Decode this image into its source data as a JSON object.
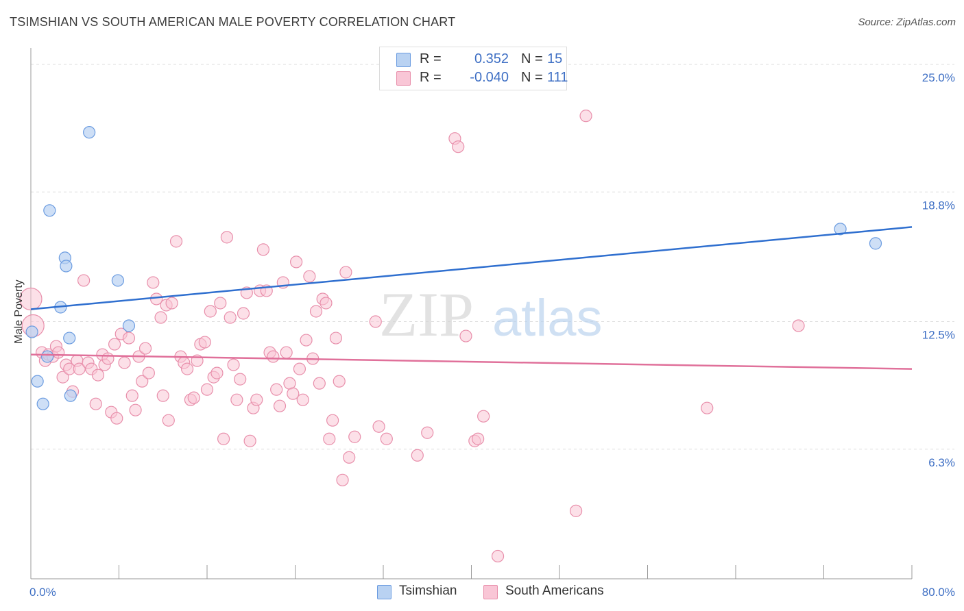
{
  "title": "TSIMSHIAN VS SOUTH AMERICAN MALE POVERTY CORRELATION CHART",
  "source": "Source: ZipAtlas.com",
  "watermark": {
    "part1": "ZIP",
    "part2": "atlas"
  },
  "colors": {
    "tsimshian_fill": "#b9d2f2",
    "tsimshian_stroke": "#6a9be0",
    "tsimshian_line": "#2f6fcf",
    "south_fill": "#f9c6d6",
    "south_stroke": "#e88fab",
    "south_line": "#e0709a",
    "tick_label": "#3e6fc4",
    "grid": "#dddddd"
  },
  "legend": {
    "rows": [
      {
        "r_label": "R =",
        "r_value": "0.352",
        "n_label": "N =",
        "n_value": "15"
      },
      {
        "r_label": "R =",
        "r_value": "-0.040",
        "n_label": "N =",
        "n_value": "111"
      }
    ]
  },
  "bottom_legend": {
    "tsimshian": "Tsimshian",
    "south": "South Americans"
  },
  "chart_data": {
    "type": "scatter",
    "title": "TSIMSHIAN VS SOUTH AMERICAN MALE POVERTY CORRELATION CHART",
    "ylabel": "Male Poverty",
    "xlabel": "",
    "xlim": [
      0,
      80
    ],
    "ylim": [
      0,
      25.8
    ],
    "x_tick_labels": [
      "0.0%",
      "80.0%"
    ],
    "y_ticks": [
      {
        "value": 6.3,
        "label": "6.3%"
      },
      {
        "value": 12.5,
        "label": "12.5%"
      },
      {
        "value": 18.8,
        "label": "18.8%"
      },
      {
        "value": 25.0,
        "label": "25.0%"
      }
    ],
    "grid": true,
    "legend_position": "top-center",
    "series": [
      {
        "name": "Tsimshian",
        "r": 0.352,
        "n": 15,
        "trend": {
          "x": [
            0,
            80
          ],
          "y": [
            13.1,
            17.1
          ]
        },
        "points": [
          [
            0.1,
            12.0
          ],
          [
            0.6,
            9.6
          ],
          [
            1.1,
            8.5
          ],
          [
            1.5,
            10.8
          ],
          [
            1.7,
            17.9
          ],
          [
            2.7,
            13.2
          ],
          [
            3.1,
            15.6
          ],
          [
            3.2,
            15.2
          ],
          [
            3.5,
            11.7
          ],
          [
            3.6,
            8.9
          ],
          [
            5.3,
            21.7
          ],
          [
            7.9,
            14.5
          ],
          [
            8.9,
            12.3
          ],
          [
            73.5,
            17.0
          ],
          [
            76.7,
            16.3
          ]
        ]
      },
      {
        "name": "South Americans",
        "r": -0.04,
        "n": 111,
        "trend": {
          "x": [
            0,
            80
          ],
          "y": [
            10.9,
            10.2
          ]
        },
        "points": [
          [
            0.2,
            12.3
          ],
          [
            0.0,
            13.6
          ],
          [
            1.0,
            11.0
          ],
          [
            1.3,
            10.6
          ],
          [
            1.6,
            10.9
          ],
          [
            2.0,
            10.8
          ],
          [
            2.3,
            11.3
          ],
          [
            2.5,
            11.0
          ],
          [
            2.9,
            9.8
          ],
          [
            3.2,
            10.4
          ],
          [
            3.5,
            10.2
          ],
          [
            3.8,
            9.1
          ],
          [
            4.2,
            10.6
          ],
          [
            4.4,
            10.2
          ],
          [
            4.8,
            14.5
          ],
          [
            5.2,
            10.5
          ],
          [
            5.5,
            10.2
          ],
          [
            5.9,
            8.5
          ],
          [
            6.1,
            9.9
          ],
          [
            6.5,
            10.9
          ],
          [
            6.7,
            10.4
          ],
          [
            7.0,
            10.7
          ],
          [
            7.3,
            8.1
          ],
          [
            7.6,
            11.4
          ],
          [
            7.8,
            7.8
          ],
          [
            8.2,
            11.9
          ],
          [
            8.5,
            10.5
          ],
          [
            8.9,
            11.7
          ],
          [
            9.2,
            8.9
          ],
          [
            9.5,
            8.2
          ],
          [
            9.8,
            10.8
          ],
          [
            10.1,
            9.6
          ],
          [
            10.4,
            11.2
          ],
          [
            10.7,
            10.0
          ],
          [
            11.1,
            14.4
          ],
          [
            11.4,
            13.6
          ],
          [
            11.8,
            12.7
          ],
          [
            12.0,
            8.9
          ],
          [
            12.3,
            13.3
          ],
          [
            12.5,
            7.7
          ],
          [
            12.8,
            13.4
          ],
          [
            13.2,
            16.4
          ],
          [
            13.6,
            10.8
          ],
          [
            13.9,
            10.5
          ],
          [
            14.2,
            10.2
          ],
          [
            14.5,
            8.7
          ],
          [
            14.8,
            8.8
          ],
          [
            15.1,
            10.6
          ],
          [
            15.4,
            11.4
          ],
          [
            15.8,
            11.5
          ],
          [
            16.0,
            9.2
          ],
          [
            16.3,
            13.0
          ],
          [
            16.6,
            9.8
          ],
          [
            16.9,
            10.0
          ],
          [
            17.2,
            13.4
          ],
          [
            17.5,
            6.8
          ],
          [
            17.8,
            16.6
          ],
          [
            18.1,
            12.7
          ],
          [
            18.4,
            10.4
          ],
          [
            18.7,
            8.7
          ],
          [
            19.0,
            9.7
          ],
          [
            19.3,
            12.9
          ],
          [
            19.6,
            13.9
          ],
          [
            19.9,
            6.7
          ],
          [
            20.2,
            8.3
          ],
          [
            20.5,
            8.7
          ],
          [
            20.8,
            14.0
          ],
          [
            21.1,
            16.0
          ],
          [
            21.4,
            14.0
          ],
          [
            21.7,
            11.0
          ],
          [
            22.0,
            10.8
          ],
          [
            22.3,
            9.2
          ],
          [
            22.6,
            8.4
          ],
          [
            22.9,
            14.4
          ],
          [
            23.2,
            11.0
          ],
          [
            23.5,
            9.5
          ],
          [
            23.8,
            9.0
          ],
          [
            24.1,
            15.4
          ],
          [
            24.4,
            10.2
          ],
          [
            24.7,
            8.7
          ],
          [
            25.0,
            11.6
          ],
          [
            25.3,
            14.7
          ],
          [
            25.6,
            10.7
          ],
          [
            25.9,
            13.0
          ],
          [
            26.2,
            9.5
          ],
          [
            26.5,
            13.6
          ],
          [
            26.8,
            13.4
          ],
          [
            27.1,
            6.8
          ],
          [
            27.4,
            7.7
          ],
          [
            27.7,
            11.7
          ],
          [
            28.0,
            9.6
          ],
          [
            28.3,
            4.8
          ],
          [
            28.6,
            14.9
          ],
          [
            28.9,
            5.9
          ],
          [
            29.4,
            6.9
          ],
          [
            31.3,
            12.5
          ],
          [
            31.6,
            7.4
          ],
          [
            32.3,
            6.8
          ],
          [
            35.1,
            6.0
          ],
          [
            36.0,
            7.1
          ],
          [
            38.5,
            21.4
          ],
          [
            38.8,
            21.0
          ],
          [
            39.5,
            11.8
          ],
          [
            40.3,
            6.7
          ],
          [
            40.6,
            6.8
          ],
          [
            41.1,
            7.9
          ],
          [
            42.4,
            1.1
          ],
          [
            49.5,
            3.3
          ],
          [
            50.4,
            22.5
          ],
          [
            61.4,
            8.3
          ],
          [
            69.7,
            12.3
          ]
        ]
      }
    ]
  }
}
